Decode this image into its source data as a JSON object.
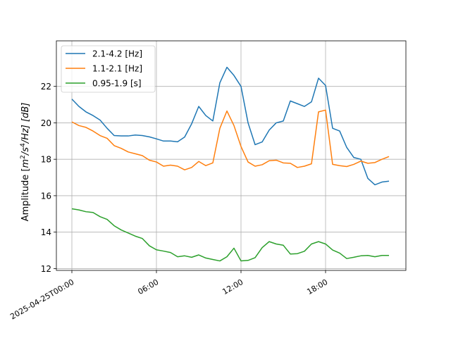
{
  "chart_data": {
    "type": "line",
    "ylabel_parts": {
      "prefix": "Amplitude [",
      "m": "m",
      "two": "2",
      "s": "/s",
      "four": "4",
      "suffix": "/Hz] [dB]"
    },
    "x_ticks": [
      {
        "hour": 0,
        "label": "2025-04-25T00:00"
      },
      {
        "hour": 6,
        "label": "06:00"
      },
      {
        "hour": 12,
        "label": "12:00"
      },
      {
        "hour": 18,
        "label": "18:00"
      }
    ],
    "y_ticks": [
      12,
      14,
      16,
      18,
      20,
      22
    ],
    "xlim_hours": [
      -1.1,
      23.7
    ],
    "ylim": [
      11.9,
      24.5
    ],
    "grid": true,
    "legend_position": "upper-left",
    "series": [
      {
        "name": "2.1-4.2 [Hz]",
        "color": "#1f77b4",
        "hours": [
          0,
          0.5,
          1,
          1.5,
          2,
          2.5,
          3,
          3.5,
          4,
          4.5,
          5,
          5.5,
          6,
          6.5,
          7,
          7.5,
          8,
          8.5,
          9,
          9.5,
          10,
          10.5,
          11,
          11.5,
          12,
          12.5,
          13,
          13.5,
          14,
          14.5,
          15,
          15.5,
          16,
          16.5,
          17,
          17.5,
          18,
          18.5,
          19,
          19.5,
          20,
          20.5,
          21,
          21.5,
          22,
          22.5
        ],
        "values": [
          21.3,
          20.9,
          20.6,
          20.4,
          20.15,
          19.7,
          19.3,
          19.28,
          19.28,
          19.33,
          19.3,
          19.23,
          19.12,
          19.0,
          19.0,
          18.96,
          19.22,
          19.95,
          20.9,
          20.4,
          20.1,
          22.2,
          23.05,
          22.6,
          22.0,
          20.0,
          18.8,
          18.95,
          19.6,
          20.0,
          20.1,
          21.2,
          21.05,
          20.9,
          21.15,
          22.45,
          22.05,
          19.7,
          19.55,
          18.65,
          18.1,
          18.0,
          16.95,
          16.6,
          16.75,
          16.8
        ]
      },
      {
        "name": "1.1-2.1 [Hz]",
        "color": "#ff7f0e",
        "hours": [
          0,
          0.5,
          1,
          1.5,
          2,
          2.5,
          3,
          3.5,
          4,
          4.5,
          5,
          5.5,
          6,
          6.5,
          7,
          7.5,
          8,
          8.5,
          9,
          9.5,
          10,
          10.5,
          11,
          11.5,
          12,
          12.5,
          13,
          13.5,
          14,
          14.5,
          15,
          15.5,
          16,
          16.5,
          17,
          17.5,
          18,
          18.5,
          19,
          19.5,
          20,
          20.5,
          21,
          21.5,
          22,
          22.5
        ],
        "values": [
          20.05,
          19.85,
          19.75,
          19.55,
          19.3,
          19.15,
          18.75,
          18.6,
          18.4,
          18.3,
          18.2,
          17.95,
          17.85,
          17.62,
          17.68,
          17.62,
          17.42,
          17.55,
          17.88,
          17.65,
          17.8,
          19.7,
          20.65,
          19.85,
          18.7,
          17.85,
          17.62,
          17.7,
          17.92,
          17.95,
          17.8,
          17.78,
          17.55,
          17.62,
          17.75,
          20.6,
          20.7,
          17.72,
          17.65,
          17.6,
          17.72,
          17.9,
          17.78,
          17.82,
          18.0,
          18.15
        ]
      },
      {
        "name": "0.95-1.9 [s]",
        "color": "#2ca02c",
        "hours": [
          0,
          0.5,
          1,
          1.5,
          2,
          2.5,
          3,
          3.5,
          4,
          4.5,
          5,
          5.5,
          6,
          6.5,
          7,
          7.5,
          8,
          8.5,
          9,
          9.5,
          10,
          10.5,
          11,
          11.5,
          12,
          12.5,
          13,
          13.5,
          14,
          14.5,
          15,
          15.5,
          16,
          16.5,
          17,
          17.5,
          18,
          18.5,
          19,
          19.5,
          20,
          20.5,
          21,
          21.5,
          22,
          22.5
        ],
        "values": [
          15.28,
          15.22,
          15.12,
          15.08,
          14.85,
          14.7,
          14.35,
          14.12,
          13.95,
          13.78,
          13.65,
          13.25,
          13.03,
          12.96,
          12.88,
          12.65,
          12.7,
          12.62,
          12.75,
          12.58,
          12.5,
          12.42,
          12.65,
          13.12,
          12.42,
          12.45,
          12.6,
          13.15,
          13.48,
          13.35,
          13.28,
          12.8,
          12.82,
          12.95,
          13.35,
          13.48,
          13.35,
          13.02,
          12.85,
          12.55,
          12.62,
          12.7,
          12.72,
          12.65,
          12.72,
          12.72
        ]
      }
    ]
  }
}
